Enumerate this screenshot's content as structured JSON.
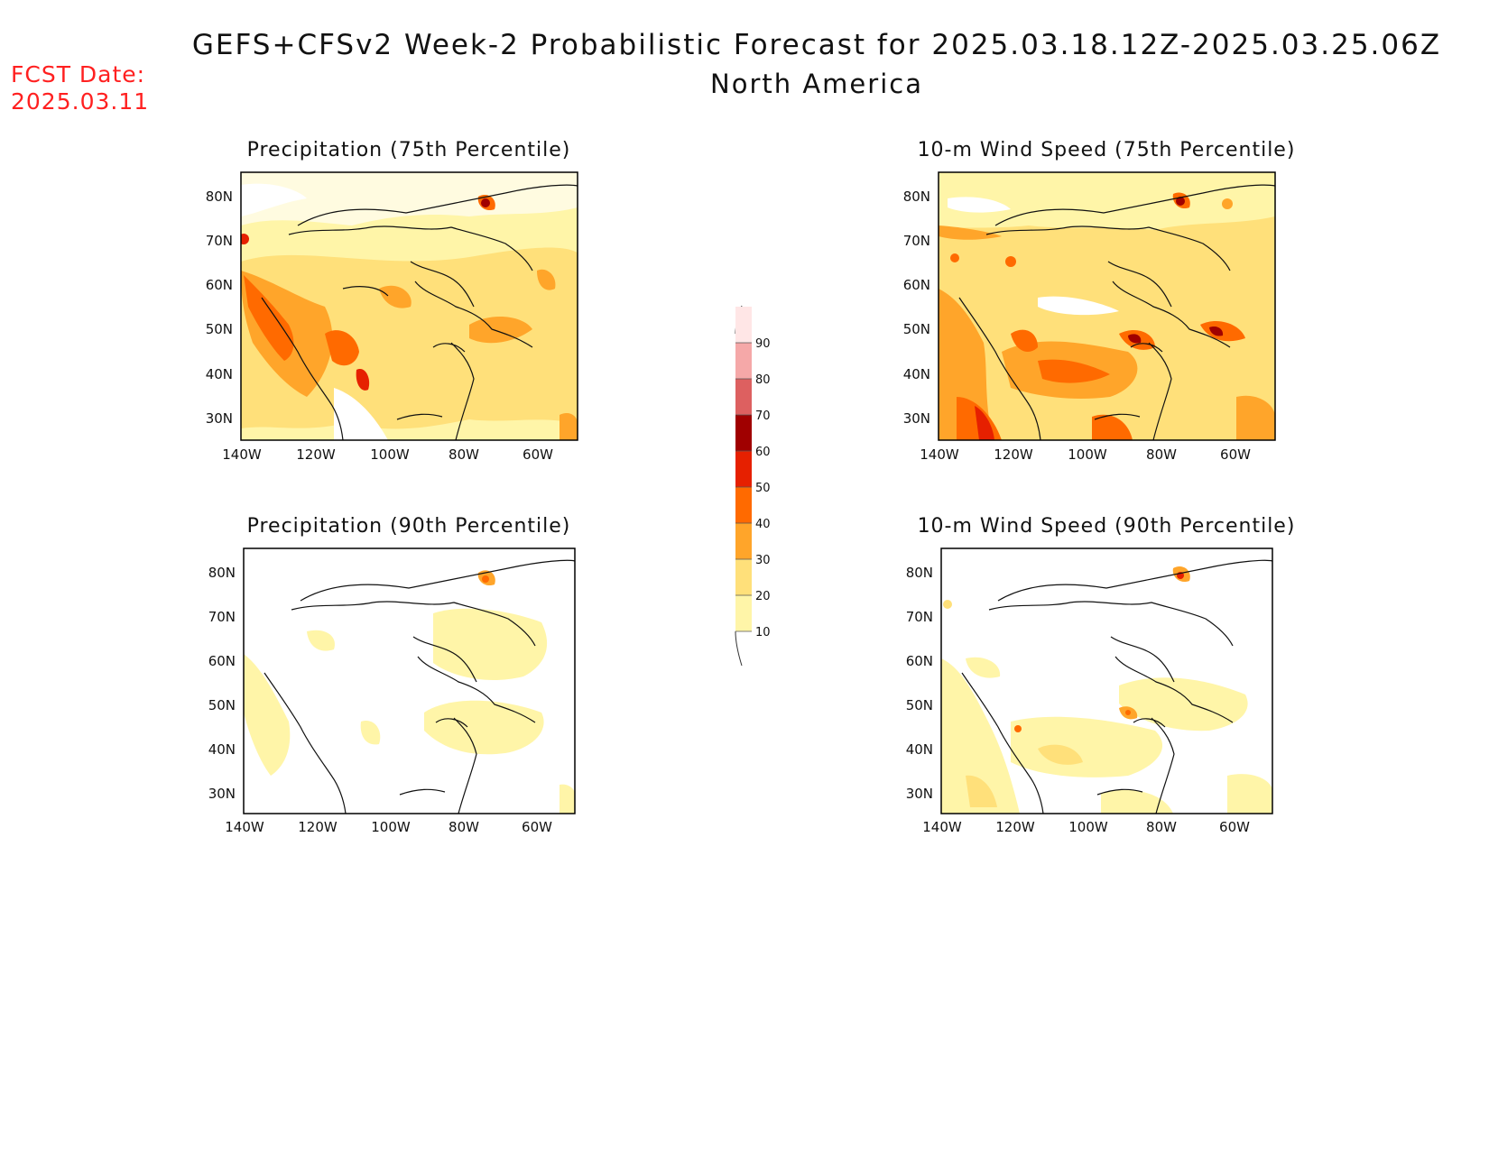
{
  "header": {
    "title": "GEFS+CFSv2 Week-2 Probabilistic Forecast for 2025.03.18.12Z-2025.03.25.06Z",
    "subtitle": "North America",
    "fcst_label": "FCST Date:",
    "fcst_date": "2025.03.11"
  },
  "panels": [
    {
      "title": "Precipitation (75th Percentile)"
    },
    {
      "title": "10-m Wind Speed (75th Percentile)"
    },
    {
      "title": "Precipitation (90th Percentile)"
    },
    {
      "title": "10-m Wind Speed (90th Percentile)"
    }
  ],
  "axes": {
    "lat_labels": [
      "80N",
      "70N",
      "60N",
      "50N",
      "40N",
      "30N"
    ],
    "lon_labels": [
      "140W",
      "120W",
      "100W",
      "80W",
      "60W"
    ]
  },
  "colorbar": {
    "levels": [
      "10",
      "20",
      "30",
      "40",
      "50",
      "60",
      "70",
      "80",
      "90"
    ],
    "colors": [
      "#fff5a8",
      "#ffe07a",
      "#ffa52a",
      "#ff6a00",
      "#e62000",
      "#a00000",
      "#dd6060",
      "#f5a8a8",
      "#ffe6e6"
    ]
  },
  "colors": {
    "title": "#111111",
    "fcst_date": "#ff2020"
  }
}
